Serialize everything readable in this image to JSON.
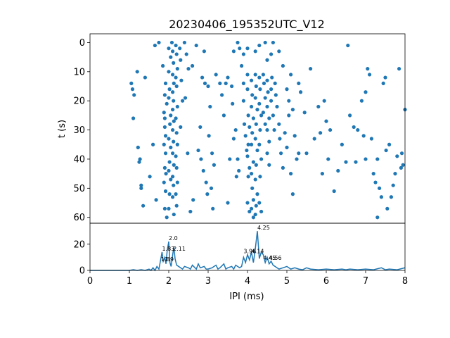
{
  "chart_data": [
    {
      "type": "scatter",
      "title": "20230406_195352UTC_V12",
      "ylabel": "t (s)",
      "xlim": [
        0,
        8
      ],
      "ylim": [
        62,
        -3
      ],
      "y_inverted": true,
      "yticks": [
        0,
        10,
        20,
        30,
        40,
        50,
        60
      ],
      "color": "#1f77b4",
      "points": [
        [
          1.05,
          14
        ],
        [
          1.08,
          16
        ],
        [
          1.12,
          18
        ],
        [
          1.1,
          26
        ],
        [
          1.2,
          10
        ],
        [
          1.22,
          36
        ],
        [
          1.25,
          41
        ],
        [
          1.27,
          40
        ],
        [
          1.3,
          49
        ],
        [
          1.3,
          50
        ],
        [
          1.35,
          56
        ],
        [
          1.4,
          12
        ],
        [
          1.52,
          46
        ],
        [
          1.6,
          35
        ],
        [
          1.65,
          1
        ],
        [
          1.68,
          54
        ],
        [
          1.75,
          0
        ],
        [
          1.85,
          8
        ],
        [
          1.88,
          24
        ],
        [
          1.9,
          26
        ],
        [
          1.9,
          29
        ],
        [
          1.92,
          32
        ],
        [
          1.88,
          35
        ],
        [
          1.92,
          38
        ],
        [
          1.9,
          43
        ],
        [
          1.93,
          45
        ],
        [
          1.88,
          48
        ],
        [
          1.92,
          51
        ],
        [
          1.9,
          57
        ],
        [
          1.95,
          60
        ],
        [
          1.9,
          18
        ],
        [
          1.92,
          14
        ],
        [
          1.95,
          21
        ],
        [
          2.0,
          10
        ],
        [
          2.02,
          16
        ],
        [
          2.0,
          19
        ],
        [
          2.05,
          25
        ],
        [
          2.03,
          28
        ],
        [
          2.0,
          33
        ],
        [
          2.05,
          36
        ],
        [
          2.02,
          41
        ],
        [
          2.0,
          44
        ],
        [
          2.05,
          47
        ],
        [
          2.02,
          52
        ],
        [
          2.0,
          57
        ],
        [
          2.05,
          5
        ],
        [
          2.0,
          2
        ],
        [
          2.08,
          0
        ],
        [
          2.1,
          3
        ],
        [
          2.12,
          7
        ],
        [
          2.1,
          11
        ],
        [
          2.13,
          14
        ],
        [
          2.1,
          17
        ],
        [
          2.12,
          20
        ],
        [
          2.1,
          23
        ],
        [
          2.13,
          27
        ],
        [
          2.1,
          30
        ],
        [
          2.12,
          34
        ],
        [
          2.1,
          38
        ],
        [
          2.13,
          42
        ],
        [
          2.1,
          46
        ],
        [
          2.12,
          49
        ],
        [
          2.1,
          53
        ],
        [
          2.13,
          59
        ],
        [
          2.18,
          1
        ],
        [
          2.2,
          4
        ],
        [
          2.22,
          9
        ],
        [
          2.18,
          12
        ],
        [
          2.2,
          15
        ],
        [
          2.22,
          22
        ],
        [
          2.18,
          26
        ],
        [
          2.2,
          31
        ],
        [
          2.22,
          35
        ],
        [
          2.18,
          39
        ],
        [
          2.2,
          43
        ],
        [
          2.22,
          48
        ],
        [
          2.18,
          52
        ],
        [
          2.2,
          56
        ],
        [
          2.28,
          2
        ],
        [
          2.3,
          6
        ],
        [
          2.32,
          13
        ],
        [
          2.35,
          20
        ],
        [
          2.3,
          29
        ],
        [
          2.4,
          0
        ],
        [
          2.45,
          4
        ],
        [
          2.5,
          9
        ],
        [
          2.42,
          19
        ],
        [
          2.48,
          38
        ],
        [
          2.55,
          58
        ],
        [
          2.6,
          8
        ],
        [
          2.62,
          54
        ],
        [
          2.7,
          1
        ],
        [
          2.75,
          37
        ],
        [
          2.8,
          29
        ],
        [
          2.82,
          40
        ],
        [
          2.85,
          12
        ],
        [
          2.88,
          44
        ],
        [
          2.9,
          3
        ],
        [
          2.92,
          14
        ],
        [
          2.95,
          48
        ],
        [
          2.98,
          52
        ],
        [
          3.0,
          15
        ],
        [
          3.02,
          32
        ],
        [
          3.05,
          22
        ],
        [
          3.08,
          50
        ],
        [
          3.1,
          38
        ],
        [
          3.12,
          57
        ],
        [
          3.15,
          42
        ],
        [
          3.2,
          11
        ],
        [
          3.3,
          14
        ],
        [
          3.35,
          18
        ],
        [
          3.4,
          25
        ],
        [
          3.45,
          14
        ],
        [
          3.5,
          55
        ],
        [
          3.5,
          12
        ],
        [
          3.55,
          40
        ],
        [
          3.6,
          15
        ],
        [
          3.62,
          21
        ],
        [
          3.65,
          33
        ],
        [
          3.7,
          30
        ],
        [
          3.72,
          46
        ],
        [
          3.75,
          40
        ],
        [
          3.78,
          44
        ],
        [
          3.8,
          2
        ],
        [
          3.85,
          8
        ],
        [
          3.9,
          14
        ],
        [
          3.9,
          20
        ],
        [
          3.92,
          28
        ],
        [
          3.95,
          32
        ],
        [
          3.98,
          37
        ],
        [
          4.0,
          11
        ],
        [
          4.0,
          16
        ],
        [
          4.02,
          25
        ],
        [
          4.05,
          29
        ],
        [
          4.02,
          35
        ],
        [
          4.0,
          39
        ],
        [
          4.05,
          43
        ],
        [
          4.02,
          46
        ],
        [
          4.0,
          55
        ],
        [
          4.05,
          58
        ],
        [
          4.1,
          13
        ],
        [
          4.12,
          18
        ],
        [
          4.1,
          22
        ],
        [
          4.15,
          26
        ],
        [
          4.12,
          31
        ],
        [
          4.1,
          35
        ],
        [
          4.15,
          41
        ],
        [
          4.1,
          45
        ],
        [
          4.12,
          50
        ],
        [
          4.15,
          54
        ],
        [
          4.1,
          57
        ],
        [
          4.15,
          60
        ],
        [
          4.2,
          11
        ],
        [
          4.22,
          15
        ],
        [
          4.2,
          19
        ],
        [
          4.25,
          23
        ],
        [
          4.22,
          28
        ],
        [
          4.2,
          33
        ],
        [
          4.25,
          37
        ],
        [
          4.22,
          42
        ],
        [
          4.2,
          47
        ],
        [
          4.25,
          52
        ],
        [
          4.22,
          56
        ],
        [
          4.2,
          59
        ],
        [
          4.3,
          12
        ],
        [
          4.32,
          16
        ],
        [
          4.3,
          21
        ],
        [
          4.35,
          25
        ],
        [
          4.32,
          30
        ],
        [
          4.3,
          35
        ],
        [
          4.35,
          40
        ],
        [
          4.32,
          46
        ],
        [
          4.3,
          55
        ],
        [
          4.35,
          58
        ],
        [
          4.4,
          11
        ],
        [
          4.42,
          14
        ],
        [
          4.45,
          19
        ],
        [
          4.4,
          24
        ],
        [
          4.45,
          28
        ],
        [
          4.5,
          13
        ],
        [
          4.52,
          17
        ],
        [
          4.5,
          22
        ],
        [
          4.55,
          26
        ],
        [
          4.5,
          30
        ],
        [
          4.55,
          34
        ],
        [
          4.5,
          38
        ],
        [
          4.55,
          42
        ],
        [
          4.6,
          16
        ],
        [
          4.62,
          12
        ],
        [
          4.6,
          20
        ],
        [
          4.65,
          25
        ],
        [
          4.68,
          30
        ],
        [
          4.7,
          14
        ],
        [
          4.72,
          18
        ],
        [
          4.75,
          22
        ],
        [
          4.8,
          28
        ],
        [
          4.82,
          33
        ],
        [
          4.85,
          38
        ],
        [
          4.9,
          43
        ],
        [
          4.95,
          31
        ],
        [
          5.0,
          36
        ],
        [
          5.05,
          25
        ],
        [
          5.1,
          45
        ],
        [
          5.15,
          52
        ],
        [
          5.2,
          32
        ],
        [
          5.25,
          40
        ],
        [
          5.3,
          38
        ],
        [
          3.65,
          3
        ],
        [
          3.75,
          0
        ],
        [
          3.9,
          4
        ],
        [
          4.0,
          2
        ],
        [
          4.2,
          3
        ],
        [
          4.3,
          1
        ],
        [
          4.45,
          0
        ],
        [
          4.5,
          6
        ],
        [
          4.6,
          4
        ],
        [
          4.65,
          0
        ],
        [
          4.8,
          3
        ],
        [
          4.9,
          8
        ],
        [
          5.0,
          16
        ],
        [
          5.05,
          20
        ],
        [
          5.1,
          11
        ],
        [
          5.15,
          23
        ],
        [
          5.3,
          14
        ],
        [
          5.35,
          17
        ],
        [
          5.45,
          24
        ],
        [
          5.5,
          38
        ],
        [
          5.6,
          9
        ],
        [
          5.7,
          33
        ],
        [
          5.8,
          22
        ],
        [
          5.85,
          31
        ],
        [
          5.9,
          45
        ],
        [
          5.95,
          20
        ],
        [
          6.0,
          27
        ],
        [
          6.05,
          40
        ],
        [
          6.1,
          30
        ],
        [
          6.2,
          51
        ],
        [
          6.3,
          44
        ],
        [
          6.4,
          35
        ],
        [
          6.5,
          41
        ],
        [
          6.55,
          1
        ],
        [
          6.6,
          25
        ],
        [
          6.7,
          29
        ],
        [
          6.8,
          30
        ],
        [
          6.9,
          20
        ],
        [
          6.95,
          32
        ],
        [
          7.0,
          40
        ],
        [
          7.05,
          9
        ],
        [
          7.1,
          11
        ],
        [
          7.15,
          33
        ],
        [
          7.2,
          45
        ],
        [
          7.25,
          48
        ],
        [
          7.3,
          40
        ],
        [
          7.35,
          50
        ],
        [
          7.4,
          53
        ],
        [
          7.45,
          14
        ],
        [
          7.5,
          12
        ],
        [
          7.55,
          57
        ],
        [
          7.6,
          35
        ],
        [
          7.65,
          53
        ],
        [
          7.7,
          49
        ],
        [
          7.75,
          45
        ],
        [
          7.8,
          39
        ],
        [
          7.85,
          9
        ],
        [
          7.9,
          43
        ],
        [
          7.95,
          42
        ],
        [
          8.0,
          23
        ],
        [
          7.92,
          38
        ],
        [
          7.0,
          17
        ],
        [
          6.75,
          41
        ],
        [
          7.3,
          60
        ],
        [
          7.52,
          37
        ]
      ]
    },
    {
      "type": "line",
      "xlabel": "IPI (ms)",
      "xlim": [
        0,
        8
      ],
      "ylim": [
        0,
        36
      ],
      "xticks": [
        0,
        1,
        2,
        3,
        4,
        5,
        6,
        7,
        8
      ],
      "yticks": [
        0,
        20
      ],
      "color": "#1f77b4",
      "series": [
        {
          "x": [
            0,
            0.5,
            1.0,
            1.1,
            1.2,
            1.3,
            1.4,
            1.5,
            1.55,
            1.6,
            1.65,
            1.7,
            1.75,
            1.8,
            1.83,
            1.86,
            1.9,
            1.93,
            1.96,
            2.0,
            2.03,
            2.06,
            2.1,
            2.13,
            2.16,
            2.2,
            2.25,
            2.3,
            2.35,
            2.4,
            2.5,
            2.55,
            2.6,
            2.7,
            2.75,
            2.8,
            2.9,
            2.95,
            3.0,
            3.1,
            3.2,
            3.25,
            3.3,
            3.4,
            3.45,
            3.5,
            3.6,
            3.65,
            3.7,
            3.8,
            3.85,
            3.9,
            3.95,
            4.0,
            4.05,
            4.1,
            4.15,
            4.2,
            4.25,
            4.3,
            4.35,
            4.4,
            4.45,
            4.5,
            4.55,
            4.6,
            4.65,
            4.7,
            4.8,
            4.9,
            5.0,
            5.1,
            5.2,
            5.3,
            5.4,
            5.5,
            5.6,
            5.8,
            6.0,
            6.2,
            6.4,
            6.5,
            6.6,
            6.8,
            7.0,
            7.2,
            7.4,
            7.5,
            7.6,
            7.8,
            8.0
          ],
          "y": [
            0,
            0,
            0,
            0.5,
            0,
            0.5,
            0,
            1,
            0,
            2,
            0,
            3,
            1,
            9,
            14,
            7,
            10,
            5,
            15,
            22,
            6,
            3,
            12,
            18,
            9,
            4,
            3,
            2,
            1,
            3,
            2,
            1,
            4,
            1,
            5,
            2,
            3,
            1,
            1,
            2,
            4,
            1,
            2,
            5,
            1,
            2,
            3,
            1,
            4,
            2,
            3,
            10,
            6,
            12,
            8,
            14,
            6,
            17,
            30,
            9,
            14,
            12,
            6,
            10,
            5,
            7,
            4,
            3,
            1,
            2,
            3,
            1,
            2,
            1,
            0.5,
            2,
            1,
            0.5,
            1,
            0.5,
            1,
            0.5,
            1,
            0.5,
            1,
            0.5,
            2,
            0.5,
            1,
            0.5,
            2
          ]
        }
      ],
      "peak_labels": [
        {
          "x": 2.0,
          "y": 22,
          "text": "2.0"
        },
        {
          "x": 1.83,
          "y": 14,
          "text": "1.83"
        },
        {
          "x": 2.11,
          "y": 14,
          "text": "2.11"
        },
        {
          "x": 1.9,
          "y": 6,
          "text": "1.9"
        },
        {
          "x": 1.8,
          "y": 6,
          "text": "1.8"
        },
        {
          "x": 4.25,
          "y": 30,
          "text": "4.25"
        },
        {
          "x": 4.1,
          "y": 12,
          "text": "4.14"
        },
        {
          "x": 3.9,
          "y": 12,
          "text": "3.96"
        },
        {
          "x": 4.55,
          "y": 7,
          "text": "4.56"
        },
        {
          "x": 4.4,
          "y": 7,
          "text": "4.45"
        }
      ]
    }
  ]
}
